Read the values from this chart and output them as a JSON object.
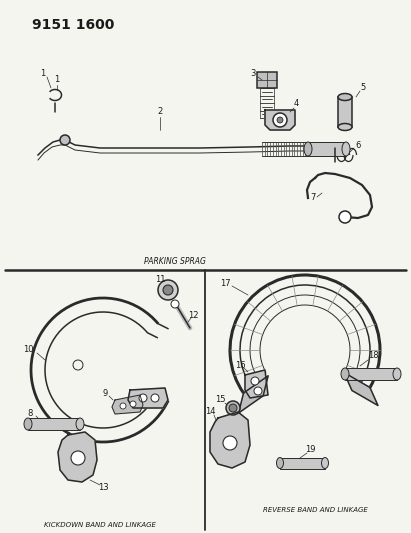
{
  "title": "9151 1600",
  "bg_color": "#f5f5f0",
  "line_color": "#2a2a2a",
  "text_color": "#1a1a1a",
  "parking_sprag_label": "PARKING SPRAG",
  "kickdown_label": "KICKDOWN BAND AND LINKAGE",
  "reverse_label": "REVERSE BAND AND LINKAGE"
}
